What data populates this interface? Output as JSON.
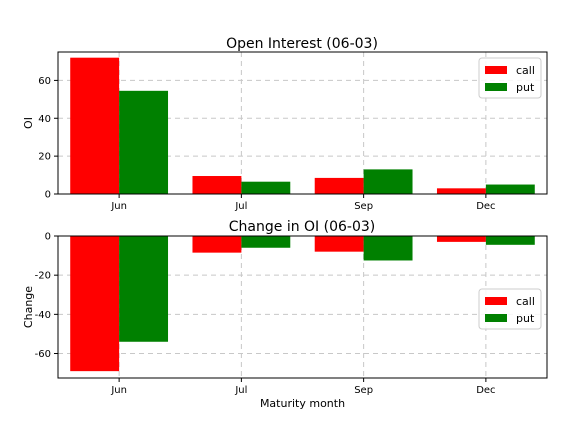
{
  "chart_data": [
    {
      "type": "bar",
      "title": "Open Interest (06-03)",
      "xlabel": "",
      "ylabel": "OI",
      "categories": [
        "Jun",
        "Jul",
        "Sep",
        "Dec"
      ],
      "series": [
        {
          "name": "call",
          "color": "#ff0000",
          "values": [
            72,
            9.5,
            8.5,
            3
          ]
        },
        {
          "name": "put",
          "color": "#008000",
          "values": [
            54.5,
            6.5,
            13,
            5
          ]
        }
      ],
      "ylim": [
        0,
        75
      ],
      "yticks": [
        0,
        20,
        40,
        60
      ],
      "grid": true,
      "legend": "top-right"
    },
    {
      "type": "bar",
      "title": "Change in OI (06-03)",
      "xlabel": "Maturity month",
      "ylabel": "Change",
      "categories": [
        "Jun",
        "Jul",
        "Sep",
        "Dec"
      ],
      "series": [
        {
          "name": "call",
          "color": "#ff0000",
          "values": [
            -69,
            -8.5,
            -8,
            -3
          ]
        },
        {
          "name": "put",
          "color": "#008000",
          "values": [
            -54,
            -6,
            -12.5,
            -4.5
          ]
        }
      ],
      "ylim": [
        -72.5,
        0
      ],
      "yticks": [
        0,
        -20,
        -40,
        -60
      ],
      "grid": true,
      "legend": "right"
    }
  ]
}
